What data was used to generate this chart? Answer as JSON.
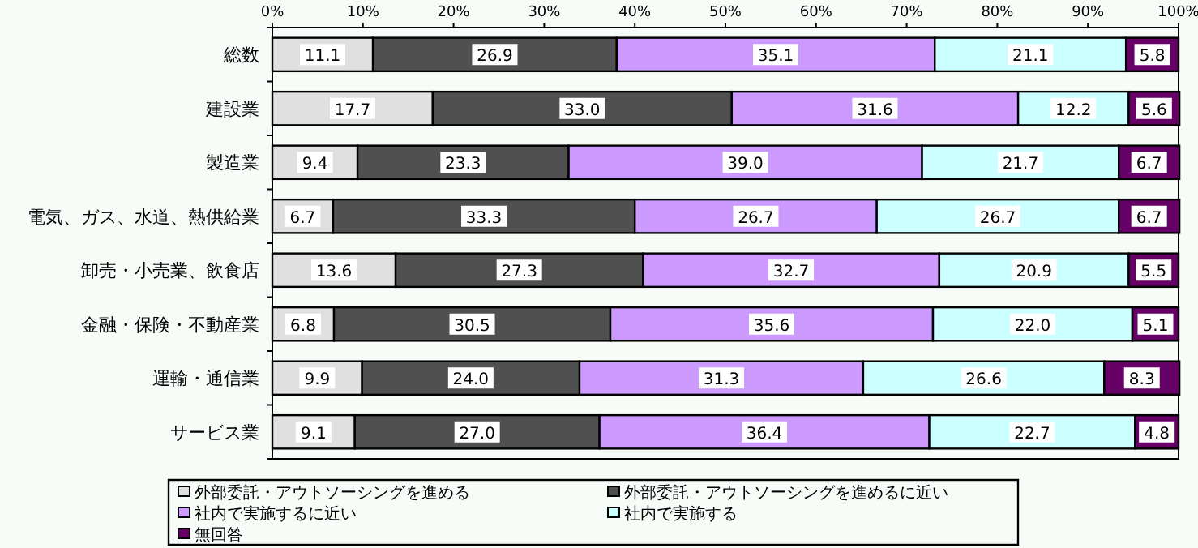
{
  "chart_data": {
    "type": "bar",
    "orientation": "horizontal",
    "stacked": true,
    "legend": "bottom",
    "grid": false,
    "categories": [
      "総数",
      "建設業",
      "製造業",
      "電気、ガス、水道、熱供給業",
      "卸売・小売業、飲食店",
      "金融・保険・不動産業",
      "運輸・通信業",
      "サービス業"
    ],
    "xlim": [
      0,
      100
    ],
    "xticks": [
      {
        "value": 0,
        "label": "0%"
      },
      {
        "value": 10,
        "label": "10%"
      },
      {
        "value": 20,
        "label": "20%"
      },
      {
        "value": 30,
        "label": "30%"
      },
      {
        "value": 40,
        "label": "40%"
      },
      {
        "value": 50,
        "label": "50%"
      },
      {
        "value": 60,
        "label": "60%"
      },
      {
        "value": 70,
        "label": "70%"
      },
      {
        "value": 80,
        "label": "80%"
      },
      {
        "value": 90,
        "label": "90%"
      },
      {
        "value": 100,
        "label": "100%"
      }
    ],
    "series": [
      {
        "name": "外部委託・アウトソーシングを進める",
        "color": "#e0e0e0",
        "values": [
          11.1,
          17.7,
          9.4,
          6.7,
          13.6,
          6.8,
          9.9,
          9.1
        ],
        "value_labels": [
          "11.1",
          "17.7",
          "9.4",
          "6.7",
          "13.6",
          "6.8",
          "9.9",
          "9.1"
        ]
      },
      {
        "name": "外部委託・アウトソーシングを進めるに近い",
        "color": "#505050",
        "values": [
          26.9,
          33.0,
          23.3,
          33.3,
          27.3,
          30.5,
          24.0,
          27.0
        ],
        "value_labels": [
          "26.9",
          "33.0",
          "23.3",
          "33.3",
          "27.3",
          "30.5",
          "24.0",
          "27.0"
        ]
      },
      {
        "name": "社内で実施するに近い",
        "color": "#cc99ff",
        "values": [
          35.1,
          31.6,
          39.0,
          26.7,
          32.7,
          35.6,
          31.3,
          36.4
        ],
        "value_labels": [
          "35.1",
          "31.6",
          "39.0",
          "26.7",
          "32.7",
          "35.6",
          "31.3",
          "36.4"
        ]
      },
      {
        "name": "社内で実施する",
        "color": "#ccffff",
        "values": [
          21.1,
          12.2,
          21.7,
          26.7,
          20.9,
          22.0,
          26.6,
          22.7
        ],
        "value_labels": [
          "21.1",
          "12.2",
          "21.7",
          "26.7",
          "20.9",
          "22.0",
          "26.6",
          "22.7"
        ]
      },
      {
        "name": "無回答",
        "color": "#660066",
        "values": [
          5.8,
          5.6,
          6.7,
          6.7,
          5.5,
          5.1,
          8.3,
          4.8
        ],
        "value_labels": [
          "5.8",
          "5.6",
          "6.7",
          "6.7",
          "5.5",
          "5.1",
          "8.3",
          "4.8"
        ]
      }
    ]
  }
}
